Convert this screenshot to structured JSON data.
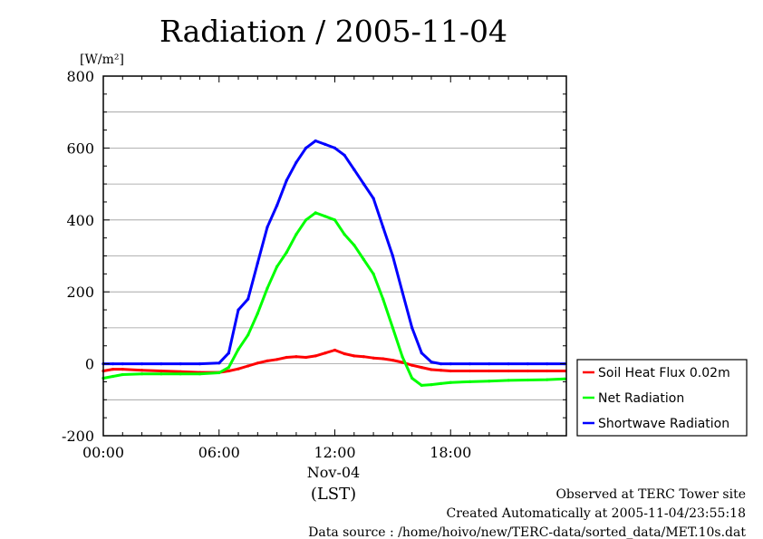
{
  "chart_data": {
    "type": "line",
    "title": "Radiation / 2005-11-04",
    "ylabel": "[W/m²]",
    "ylim": [
      -200,
      800
    ],
    "y_ticks": [
      "800",
      "600",
      "400",
      "200",
      "0",
      "-200"
    ],
    "y_tick_values": [
      800,
      600,
      400,
      200,
      0,
      -200
    ],
    "xlim": [
      "00:00",
      "24:00"
    ],
    "x_ticks": [
      "00:00",
      "06:00",
      "12:00",
      "18:00"
    ],
    "x_tick_hours": [
      0,
      6,
      12,
      18
    ],
    "x_sublabel": "Nov-04",
    "x_unit_label": "(LST)",
    "grid": true,
    "legend_position": "right",
    "series": [
      {
        "name": "Soil Heat Flux 0.02m",
        "color": "#ff0000",
        "x": [
          "00:00",
          "00:30",
          "01:00",
          "02:00",
          "03:00",
          "04:00",
          "05:00",
          "06:00",
          "06:30",
          "07:00",
          "07:30",
          "08:00",
          "08:30",
          "09:00",
          "09:30",
          "10:00",
          "10:30",
          "11:00",
          "11:30",
          "12:00",
          "12:30",
          "13:00",
          "13:30",
          "14:00",
          "14:30",
          "15:00",
          "15:30",
          "16:00",
          "16:30",
          "17:00",
          "17:30",
          "18:00",
          "19:00",
          "20:00",
          "21:00",
          "22:00",
          "23:00",
          "23:55"
        ],
        "y": [
          -20,
          -15,
          -15,
          -18,
          -20,
          -22,
          -24,
          -24,
          -20,
          -14,
          -6,
          2,
          8,
          12,
          18,
          20,
          18,
          22,
          30,
          38,
          28,
          22,
          20,
          16,
          14,
          10,
          4,
          -4,
          -10,
          -16,
          -18,
          -20,
          -20,
          -20,
          -20,
          -20,
          -20,
          -20
        ]
      },
      {
        "name": "Net Radiation",
        "color": "#00ff00",
        "x": [
          "00:00",
          "00:30",
          "01:00",
          "02:00",
          "03:00",
          "04:00",
          "05:00",
          "06:00",
          "06:30",
          "07:00",
          "07:30",
          "08:00",
          "08:30",
          "09:00",
          "09:30",
          "10:00",
          "10:30",
          "11:00",
          "11:30",
          "12:00",
          "12:30",
          "13:00",
          "13:30",
          "14:00",
          "14:30",
          "15:00",
          "15:30",
          "16:00",
          "16:30",
          "17:00",
          "17:30",
          "18:00",
          "19:00",
          "20:00",
          "21:00",
          "22:00",
          "23:00",
          "23:55"
        ],
        "y": [
          -40,
          -35,
          -30,
          -28,
          -28,
          -28,
          -28,
          -25,
          -10,
          40,
          80,
          140,
          210,
          270,
          310,
          360,
          400,
          420,
          410,
          400,
          360,
          330,
          290,
          250,
          180,
          100,
          20,
          -40,
          -60,
          -58,
          -55,
          -52,
          -50,
          -48,
          -46,
          -45,
          -44,
          -42
        ]
      },
      {
        "name": "Shortwave Radiation",
        "color": "#0000ff",
        "x": [
          "00:00",
          "00:30",
          "01:00",
          "02:00",
          "03:00",
          "04:00",
          "05:00",
          "06:00",
          "06:30",
          "07:00",
          "07:30",
          "08:00",
          "08:30",
          "09:00",
          "09:30",
          "10:00",
          "10:30",
          "11:00",
          "11:30",
          "12:00",
          "12:30",
          "13:00",
          "13:30",
          "14:00",
          "14:30",
          "15:00",
          "15:30",
          "16:00",
          "16:30",
          "17:00",
          "17:30",
          "18:00",
          "19:00",
          "20:00",
          "21:00",
          "22:00",
          "23:00",
          "23:55"
        ],
        "y": [
          0,
          0,
          0,
          0,
          0,
          0,
          0,
          2,
          30,
          150,
          180,
          280,
          380,
          440,
          510,
          560,
          600,
          620,
          610,
          600,
          580,
          540,
          500,
          460,
          380,
          300,
          200,
          100,
          30,
          5,
          0,
          0,
          0,
          0,
          0,
          0,
          0,
          0
        ]
      }
    ]
  },
  "footer": {
    "line1": "Observed at TERC Tower site",
    "line2": "Created Automatically at 2005-11-04/23:55:18",
    "line3": "Data source : /home/hoivo/new/TERC-data/sorted_data/MET.10s.dat"
  }
}
